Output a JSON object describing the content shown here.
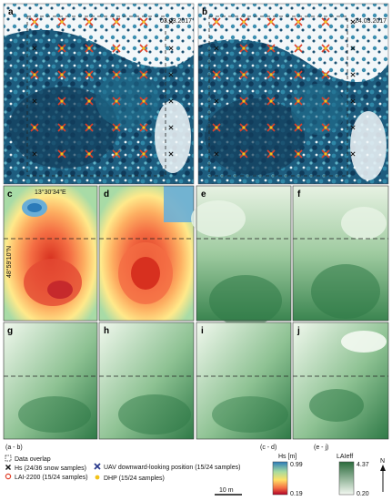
{
  "panels": {
    "a": {
      "label": "a",
      "date": "03.03.2017"
    },
    "b": {
      "label": "b",
      "date": "24.03.2017"
    },
    "c": {
      "label": "c",
      "lon_label": "13°30'34\"E",
      "lat_label": "48°59'10\"N"
    },
    "d": {
      "label": "d"
    },
    "e": {
      "label": "e"
    },
    "f": {
      "label": "f"
    },
    "g": {
      "label": "g"
    },
    "h": {
      "label": "h"
    },
    "i": {
      "label": "i"
    },
    "j": {
      "label": "j"
    }
  },
  "legend": {
    "ab_header": "(a - b)",
    "overlap_label": "Data overlap",
    "snow_label": "Hs (24/36 snow samples)",
    "lai_label": "LAI-2200 (15/24 samples)",
    "uav_label": "UAV downward-looking position (15/24 samples)",
    "dhp_label": "DHP (15/24 samples)",
    "scale_label": "10 m",
    "cd_header": "(c - d)",
    "hs_title": "Hs [m]",
    "hs_max": "0.99",
    "hs_min": "0.19",
    "ej_header": "(e - j)",
    "lai_title": "LAIeff",
    "lai_max": "4.37",
    "lai_min": "0.20",
    "north": "N"
  },
  "colors": {
    "hs_high": "#b10026",
    "hs_mid": "#ffd84d",
    "hs_low": "#2b7bb9",
    "lai_high": "#2a6b3b",
    "lai_low": "#f4f9f2",
    "imagery_dark": "#0e2f4a",
    "imagery_light": "#f4f8fa",
    "marker_snow": "#111111",
    "marker_lai": "#e0402a",
    "marker_dhp": "#f2c218"
  }
}
